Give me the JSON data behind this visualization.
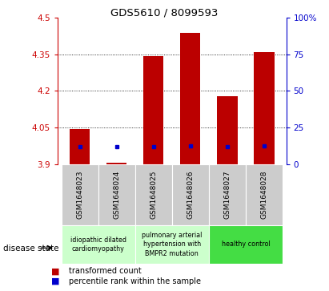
{
  "title": "GDS5610 / 8099593",
  "samples": [
    "GSM1648023",
    "GSM1648024",
    "GSM1648025",
    "GSM1648026",
    "GSM1648027",
    "GSM1648028"
  ],
  "red_values": [
    4.045,
    3.908,
    4.342,
    4.438,
    4.178,
    4.357
  ],
  "blue_values": [
    3.972,
    3.972,
    3.972,
    3.975,
    3.972,
    3.975
  ],
  "base_value": 3.9,
  "ylim_left": [
    3.9,
    4.5
  ],
  "ylim_right": [
    0,
    100
  ],
  "yticks_left": [
    3.9,
    4.05,
    4.2,
    4.35,
    4.5
  ],
  "yticks_right": [
    0,
    25,
    50,
    75,
    100
  ],
  "ytick_labels_left": [
    "3.9",
    "4.05",
    "4.2",
    "4.35",
    "4.5"
  ],
  "ytick_labels_right": [
    "0",
    "25",
    "50",
    "75",
    "100%"
  ],
  "left_color": "#cc0000",
  "right_color": "#0000cc",
  "bar_width": 0.55,
  "red_bar_color": "#bb0000",
  "blue_dot_color": "#0000cc",
  "grid_dotted_lines": [
    4.05,
    4.2,
    4.35
  ],
  "background_color": "#ffffff",
  "sample_box_color": "#cccccc",
  "disease_groups": [
    {
      "label": "idiopathic dilated\ncardiomyopathy",
      "start": 0,
      "end": 1,
      "color": "#ccffcc"
    },
    {
      "label": "pulmonary arterial\nhypertension with\nBMPR2 mutation",
      "start": 2,
      "end": 3,
      "color": "#ccffcc"
    },
    {
      "label": "healthy control",
      "start": 4,
      "end": 5,
      "color": "#44dd44"
    }
  ],
  "legend_red": "transformed count",
  "legend_blue": "percentile rank within the sample",
  "disease_label": "disease state"
}
